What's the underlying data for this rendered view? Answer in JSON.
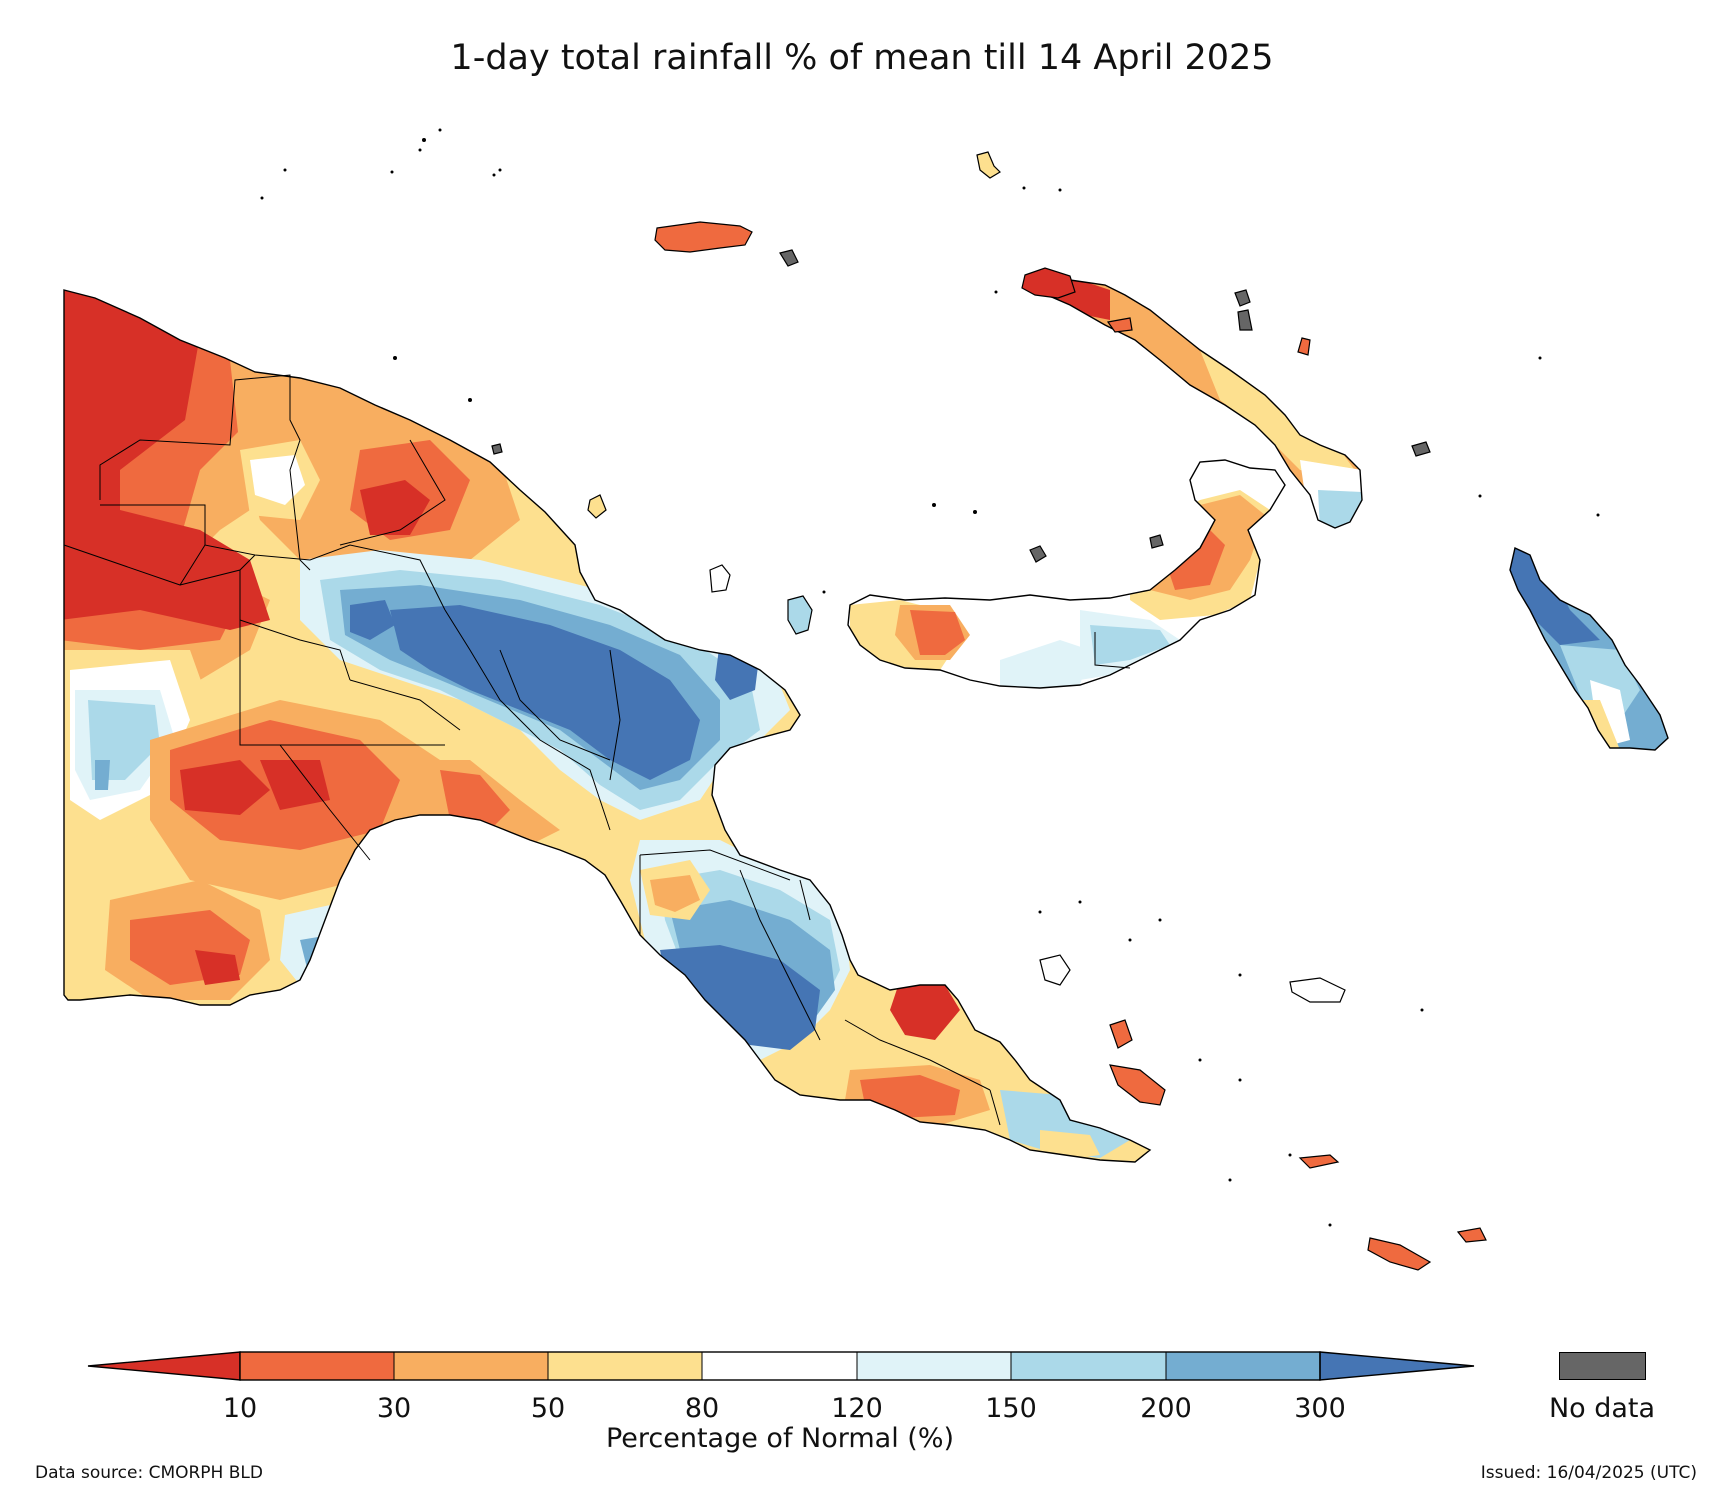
{
  "title": "1-day total rainfall % of mean till 14 April 2025",
  "legend": {
    "title": "Percentage of Normal (%)",
    "ticks": [
      "10",
      "30",
      "50",
      "80",
      "120",
      "150",
      "200",
      "300"
    ],
    "colors": [
      "#d73027",
      "#ef6a3f",
      "#f8ae60",
      "#fde08f",
      "#ffffff",
      "#e0f3f8",
      "#abd9e9",
      "#74add1",
      "#4575b4"
    ],
    "no_data_label": "No data",
    "no_data_color": "#666666"
  },
  "footer": {
    "source": "Data source: CMORPH BLD",
    "issued": "Issued: 16/04/2025 (UTC)"
  }
}
